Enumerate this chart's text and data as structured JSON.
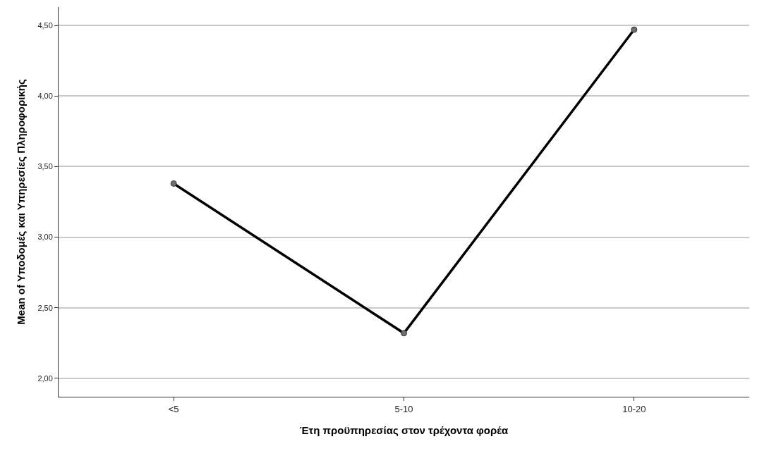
{
  "chart_data": {
    "type": "line",
    "xlabel": "Έτη προϋπηρεσίας στον τρέχοντα φορέα",
    "ylabel": "Mean of Υποδομές και Υπηρεσίες Πληροφορικής",
    "categories": [
      "<5",
      "5-10",
      "10-20"
    ],
    "series": [
      {
        "color": "#000000",
        "values": [
          3.38,
          2.32,
          4.47
        ]
      }
    ],
    "ylim": [
      1.87,
      4.63
    ],
    "yticks": [
      {
        "value": 2,
        "label": "2,00"
      },
      {
        "value": 2.5,
        "label": "2,50"
      },
      {
        "value": 3,
        "label": "3,00"
      },
      {
        "value": 3.5,
        "label": "3,50"
      },
      {
        "value": 4,
        "label": "4,00"
      },
      {
        "value": 4.5,
        "label": "4,50"
      }
    ],
    "grid": "y",
    "marker": "circle",
    "line_style": "solid"
  }
}
